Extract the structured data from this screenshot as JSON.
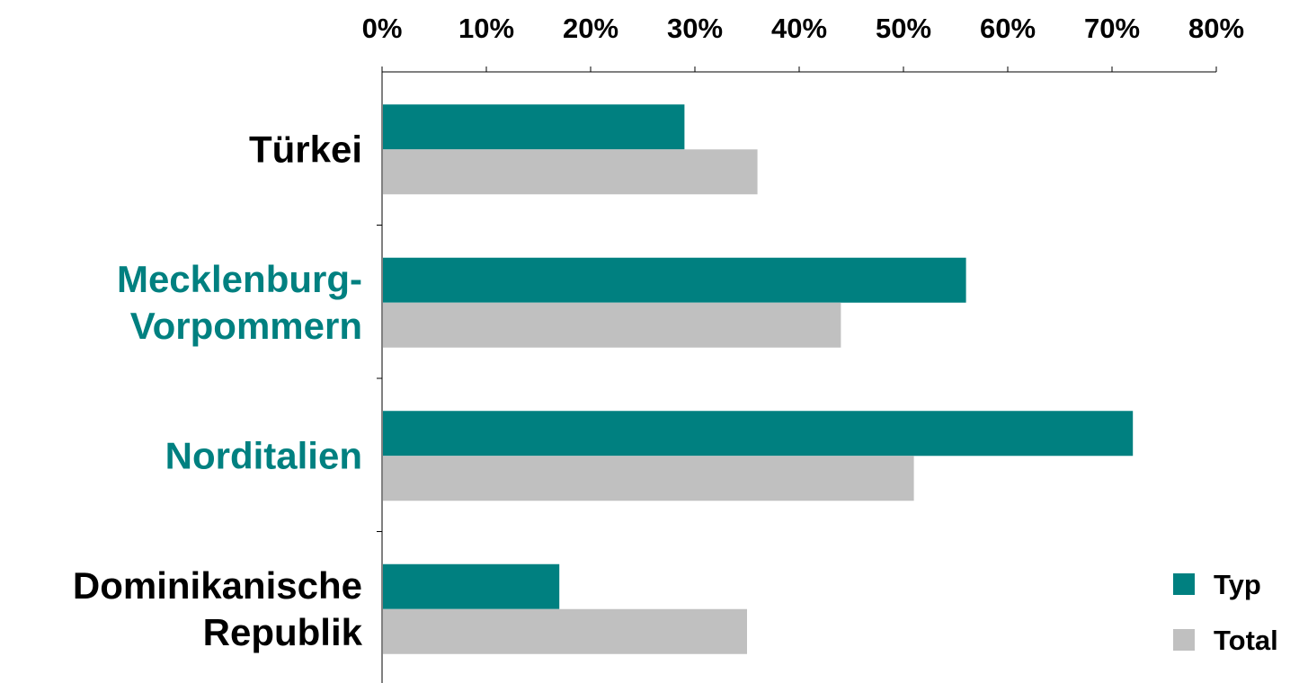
{
  "chart_data": {
    "type": "bar",
    "orientation": "horizontal",
    "categories": [
      {
        "lines": [
          "Türkei"
        ],
        "color": "#000000"
      },
      {
        "lines": [
          "Mecklenburg-",
          "Vorpommern"
        ],
        "color": "#008080"
      },
      {
        "lines": [
          "Norditalien"
        ],
        "color": "#008080"
      },
      {
        "lines": [
          "Dominikanische",
          "Republik"
        ],
        "color": "#000000"
      }
    ],
    "series": [
      {
        "name": "Typ",
        "color": "#008080",
        "values": [
          29,
          56,
          72,
          17
        ]
      },
      {
        "name": "Total",
        "color": "#c0c0c0",
        "values": [
          36,
          44,
          51,
          35
        ]
      }
    ],
    "xlim": [
      0,
      80
    ],
    "xticks": [
      0,
      10,
      20,
      30,
      40,
      50,
      60,
      70,
      80
    ],
    "tick_format": "percent",
    "x_axis_position": "top",
    "grid": false,
    "legend": "bottom-right",
    "title": "",
    "xlabel": "",
    "ylabel": ""
  }
}
